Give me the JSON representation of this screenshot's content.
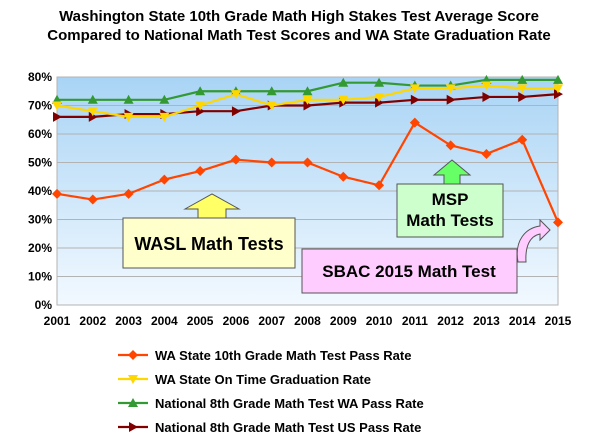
{
  "chart_data": {
    "type": "line",
    "title_line1": "Washington State 10th Grade Math High Stakes Test Average Score",
    "title_line2": "Compared to National Math Test Scores and WA State Graduation Rate",
    "x": [
      "2001",
      "2002",
      "2003",
      "2004",
      "2005",
      "2006",
      "2007",
      "2008",
      "2009",
      "2010",
      "2011",
      "2012",
      "2013",
      "2014",
      "2015"
    ],
    "ylim": [
      0,
      80
    ],
    "y_ticks": [
      "0%",
      "10%",
      "20%",
      "30%",
      "40%",
      "50%",
      "60%",
      "70%",
      "80%"
    ],
    "grid": true,
    "legend_position": "bottom",
    "series": [
      {
        "name": "WA State 10th Grade Math Test Pass Rate",
        "color": "#ff4500",
        "marker": "diamond",
        "values": [
          39,
          37,
          39,
          44,
          47,
          51,
          50,
          50,
          45,
          42,
          64,
          56,
          53,
          58,
          29
        ]
      },
      {
        "name": "WA State On Time Graduation Rate",
        "color": "#ffd700",
        "marker": "triangle-down",
        "values": [
          70,
          68,
          66,
          66,
          70,
          74,
          70,
          72,
          72,
          73,
          76,
          76,
          77,
          76,
          76
        ]
      },
      {
        "name": "National 8th Grade Math Test WA Pass Rate",
        "color": "#339933",
        "marker": "triangle-up",
        "values": [
          72,
          72,
          72,
          72,
          75,
          75,
          75,
          75,
          78,
          78,
          77,
          77,
          79,
          79,
          79
        ]
      },
      {
        "name": "National 8th Grade Math Test US Pass Rate",
        "color": "#800000",
        "marker": "triangle-right",
        "values": [
          66,
          66,
          67,
          67,
          68,
          68,
          70,
          70,
          71,
          71,
          72,
          72,
          73,
          73,
          74
        ]
      }
    ],
    "annotations": [
      {
        "lines": [
          "WASL Math Tests"
        ],
        "fill": "#ffffcc",
        "arrow_fill": "#ffff66"
      },
      {
        "lines": [
          "MSP",
          "Math Tests"
        ],
        "fill": "#ccffcc",
        "arrow_fill": "#66ff66"
      },
      {
        "lines": [
          "SBAC 2015 Math Test"
        ],
        "fill": "#ffccff",
        "arrow_fill": "#ffccff"
      }
    ]
  }
}
